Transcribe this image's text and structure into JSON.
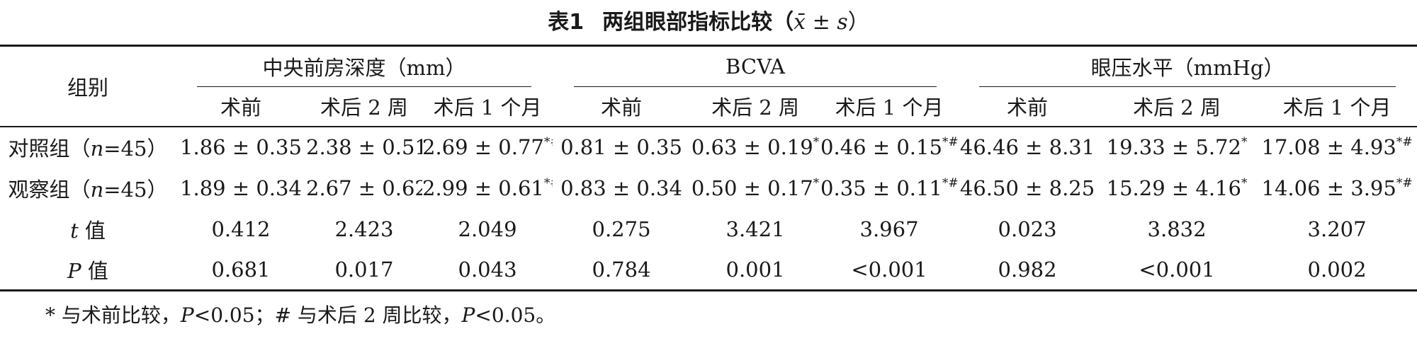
{
  "caption": {
    "number": "表1",
    "title": "两组眼部指标比较（",
    "stat": "x̄ ± s",
    "close": "）"
  },
  "header": {
    "group_label": "组别",
    "groups": [
      {
        "label": "中央前房深度（mm）"
      },
      {
        "label": "BCVA"
      },
      {
        "label": "眼压水平（mmHg）"
      }
    ],
    "subcols": [
      "术前",
      "术后 2 周",
      "术后 1 个月",
      "术前",
      "术后 2 周",
      "术后 1 个月",
      "术前",
      "术后 2 周",
      "术后 1 个月"
    ]
  },
  "rows": [
    {
      "label_pre": "对照组（",
      "label_n": "n",
      "label_post": "=45）",
      "cells": [
        {
          "v": "1.86 ± 0.35",
          "s": ""
        },
        {
          "v": "2.38 ± 0.51",
          "s": "*"
        },
        {
          "v": "2.69 ± 0.77",
          "s": "*#"
        },
        {
          "v": "0.81 ± 0.35",
          "s": ""
        },
        {
          "v": "0.63 ± 0.19",
          "s": "*"
        },
        {
          "v": "0.46 ± 0.15",
          "s": "*#"
        },
        {
          "v": "46.46 ± 8.31",
          "s": ""
        },
        {
          "v": "19.33 ± 5.72",
          "s": "*"
        },
        {
          "v": "17.08 ± 4.93",
          "s": "*#"
        }
      ]
    },
    {
      "label_pre": "观察组（",
      "label_n": "n",
      "label_post": "=45）",
      "cells": [
        {
          "v": "1.89 ± 0.34",
          "s": ""
        },
        {
          "v": "2.67 ± 0.62",
          "s": "*"
        },
        {
          "v": "2.99 ± 0.61",
          "s": "*#"
        },
        {
          "v": "0.83 ± 0.34",
          "s": ""
        },
        {
          "v": "0.50 ± 0.17",
          "s": "*"
        },
        {
          "v": "0.35 ± 0.11",
          "s": "*#"
        },
        {
          "v": "46.50 ± 8.25",
          "s": ""
        },
        {
          "v": "15.29 ± 4.16",
          "s": "*"
        },
        {
          "v": "14.06 ± 3.95",
          "s": "*#"
        }
      ]
    },
    {
      "label_pre": "",
      "label_n": "t",
      "label_post": " 值",
      "cells": [
        {
          "v": "0.412",
          "s": ""
        },
        {
          "v": "2.423",
          "s": ""
        },
        {
          "v": "2.049",
          "s": ""
        },
        {
          "v": "0.275",
          "s": ""
        },
        {
          "v": "3.421",
          "s": ""
        },
        {
          "v": "3.967",
          "s": ""
        },
        {
          "v": "0.023",
          "s": ""
        },
        {
          "v": "3.832",
          "s": ""
        },
        {
          "v": "3.207",
          "s": ""
        }
      ]
    },
    {
      "label_pre": "",
      "label_n": "P",
      "label_post": " 值",
      "cells": [
        {
          "v": "0.681",
          "s": ""
        },
        {
          "v": "0.017",
          "s": ""
        },
        {
          "v": "0.043",
          "s": ""
        },
        {
          "v": "0.784",
          "s": ""
        },
        {
          "v": "0.001",
          "s": ""
        },
        {
          "v": "<0.001",
          "s": ""
        },
        {
          "v": "0.982",
          "s": ""
        },
        {
          "v": "<0.001",
          "s": ""
        },
        {
          "v": "0.002",
          "s": ""
        }
      ]
    }
  ],
  "footnote": {
    "part1": "* 与术前比较，",
    "p1": "P",
    "part2": "<0.05；# 与术后 2 周比较，",
    "p2": "P",
    "part3": "<0.05。"
  }
}
